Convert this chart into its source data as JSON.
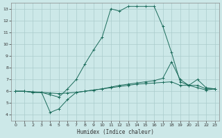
{
  "xlabel": "Humidex (Indice chaleur)",
  "bg_color": "#cce8e8",
  "grid_color": "#aacccc",
  "line_color": "#1a6b5a",
  "xlim": [
    -0.5,
    23.5
  ],
  "ylim": [
    3.5,
    13.5
  ],
  "xticks": [
    0,
    1,
    2,
    3,
    4,
    5,
    6,
    7,
    8,
    9,
    10,
    11,
    12,
    13,
    14,
    15,
    16,
    17,
    18,
    19,
    20,
    21,
    22,
    23
  ],
  "yticks": [
    4,
    5,
    6,
    7,
    8,
    9,
    10,
    11,
    12,
    13
  ],
  "curve1_x": [
    0,
    1,
    2,
    3,
    4,
    5,
    6,
    7,
    8,
    9,
    10,
    11,
    12,
    13,
    14,
    15,
    16,
    17,
    18,
    19,
    20,
    21,
    22,
    23
  ],
  "curve1_y": [
    6.0,
    6.0,
    5.9,
    5.9,
    5.7,
    5.5,
    6.2,
    7.0,
    8.3,
    9.5,
    10.6,
    13.0,
    12.8,
    13.2,
    13.2,
    13.2,
    13.2,
    11.5,
    9.3,
    6.8,
    6.5,
    6.5,
    6.2,
    6.2
  ],
  "curve2_x": [
    0,
    1,
    2,
    3,
    4,
    5,
    6,
    7,
    8,
    9,
    10,
    11,
    12,
    13,
    14,
    15,
    16,
    17,
    18,
    19,
    20,
    21,
    22,
    23
  ],
  "curve2_y": [
    6.0,
    6.0,
    5.95,
    5.9,
    5.85,
    5.8,
    5.85,
    5.9,
    6.0,
    6.1,
    6.2,
    6.35,
    6.5,
    6.6,
    6.7,
    6.8,
    6.9,
    7.1,
    8.5,
    7.0,
    6.5,
    7.0,
    6.3,
    6.2
  ],
  "curve3_x": [
    0,
    1,
    2,
    3,
    4,
    5,
    6,
    7,
    8,
    9,
    10,
    11,
    12,
    13,
    14,
    15,
    16,
    17,
    18,
    19,
    20,
    21,
    22,
    23
  ],
  "curve3_y": [
    6.0,
    6.0,
    5.9,
    5.9,
    4.2,
    4.5,
    5.3,
    5.9,
    6.0,
    6.1,
    6.2,
    6.3,
    6.4,
    6.5,
    6.6,
    6.65,
    6.7,
    6.75,
    6.8,
    6.5,
    6.5,
    6.3,
    6.1,
    6.2
  ]
}
